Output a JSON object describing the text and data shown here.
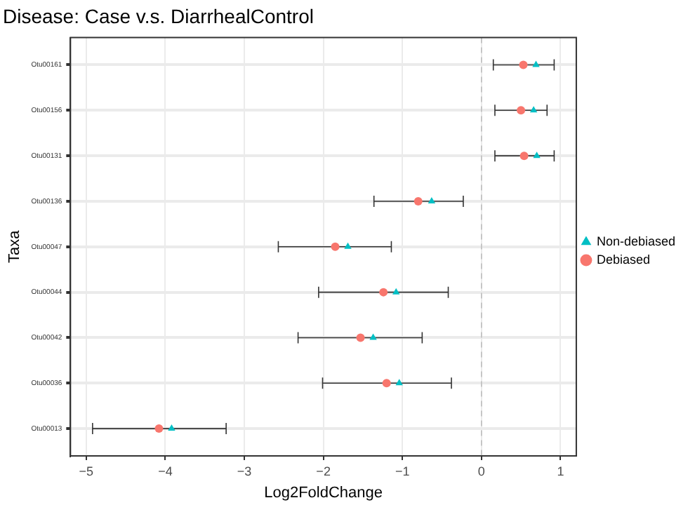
{
  "chart_data": {
    "type": "scatter",
    "orientation": "horizontal",
    "title": "Disease: Case v.s. DiarrhealControl",
    "xlabel": "Log2FoldChange",
    "ylabel": "Taxa",
    "categories": [
      "Otu00161",
      "Otu00156",
      "Otu00131",
      "Otu00136",
      "Otu00047",
      "Otu00044",
      "Otu00042",
      "Otu00036",
      "Otu00013"
    ],
    "series": [
      {
        "name": "Debiased",
        "color": "#f8766d",
        "marker": "circle",
        "values": [
          0.53,
          0.5,
          0.54,
          -0.8,
          -1.85,
          -1.24,
          -1.53,
          -1.2,
          -4.08
        ],
        "errors": [
          [
            0.15,
            0.92
          ],
          [
            0.17,
            0.83
          ],
          [
            0.17,
            0.92
          ],
          [
            -1.36,
            -0.23
          ],
          [
            -2.57,
            -1.14
          ],
          [
            -2.06,
            -0.42
          ],
          [
            -2.32,
            -0.75
          ],
          [
            -2.01,
            -0.38
          ],
          [
            -4.92,
            -3.23
          ]
        ]
      },
      {
        "name": "Non-debiased",
        "color": "#00bfc4",
        "marker": "triangle",
        "values": [
          0.69,
          0.66,
          0.7,
          -0.63,
          -1.69,
          -1.08,
          -1.37,
          -1.04,
          -3.92
        ]
      }
    ],
    "xlim": [
      -5.2,
      1.2
    ],
    "xticks": [
      -5,
      -4,
      -3,
      -2,
      -1,
      0,
      1
    ],
    "ref_lines": [
      {
        "axis": "x",
        "value": 0,
        "color": "#bebebe",
        "line_style": "dashed"
      }
    ],
    "grid": true,
    "legend": "right"
  }
}
